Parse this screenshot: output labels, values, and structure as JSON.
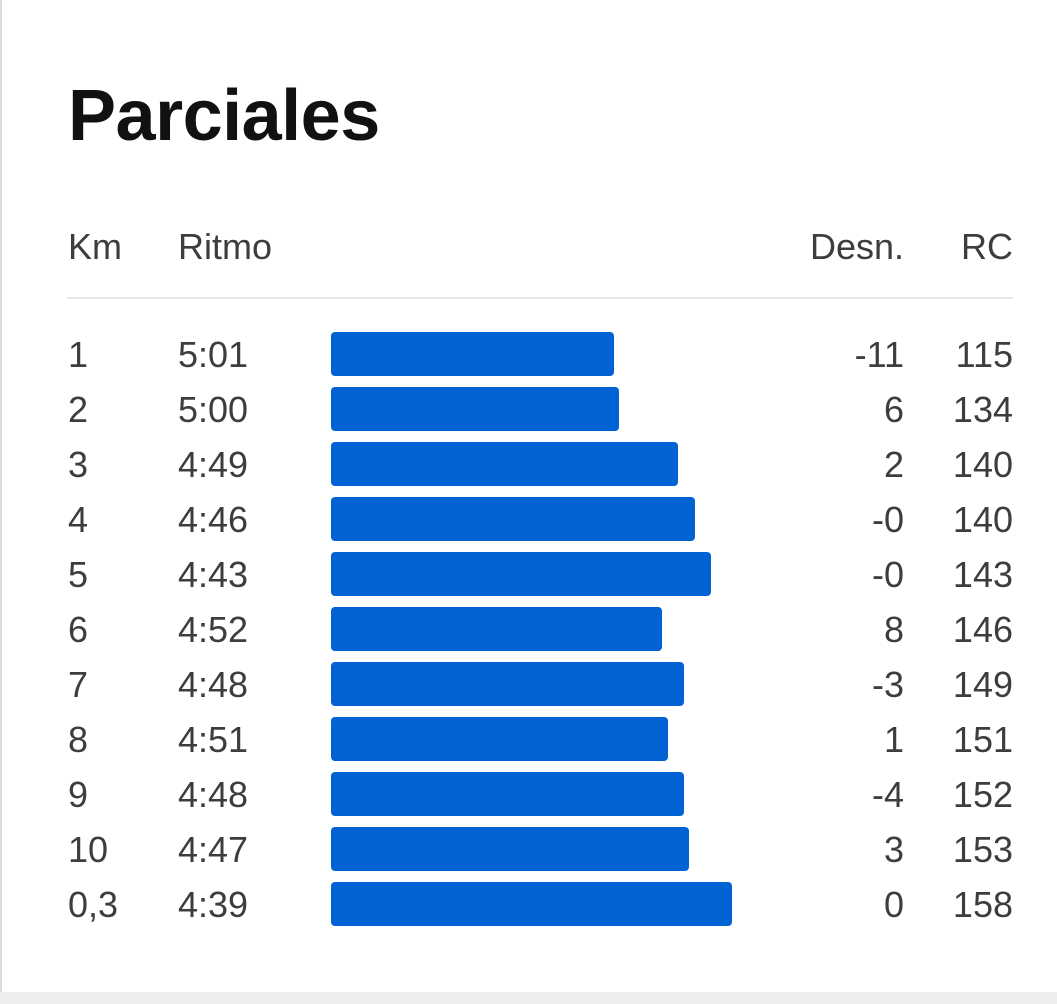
{
  "title": "Parciales",
  "accent_color": "#0062d3",
  "headers": {
    "km": "Km",
    "pace": "Ritmo",
    "elevation": "Desn.",
    "heart_rate": "RC"
  },
  "splits": [
    {
      "km": "1",
      "pace": "5:01",
      "pace_seconds": 301,
      "elevation": "-11",
      "heart_rate": "115"
    },
    {
      "km": "2",
      "pace": "5:00",
      "pace_seconds": 300,
      "elevation": "6",
      "heart_rate": "134"
    },
    {
      "km": "3",
      "pace": "4:49",
      "pace_seconds": 289,
      "elevation": "2",
      "heart_rate": "140"
    },
    {
      "km": "4",
      "pace": "4:46",
      "pace_seconds": 286,
      "elevation": "-0",
      "heart_rate": "140"
    },
    {
      "km": "5",
      "pace": "4:43",
      "pace_seconds": 283,
      "elevation": "-0",
      "heart_rate": "143"
    },
    {
      "km": "6",
      "pace": "4:52",
      "pace_seconds": 292,
      "elevation": "8",
      "heart_rate": "146"
    },
    {
      "km": "7",
      "pace": "4:48",
      "pace_seconds": 288,
      "elevation": "-3",
      "heart_rate": "149"
    },
    {
      "km": "8",
      "pace": "4:51",
      "pace_seconds": 291,
      "elevation": "1",
      "heart_rate": "151"
    },
    {
      "km": "9",
      "pace": "4:48",
      "pace_seconds": 288,
      "elevation": "-4",
      "heart_rate": "152"
    },
    {
      "km": "10",
      "pace": "4:47",
      "pace_seconds": 287,
      "elevation": "3",
      "heart_rate": "153"
    },
    {
      "km": "0,3",
      "pace": "4:39",
      "pace_seconds": 279,
      "elevation": "0",
      "heart_rate": "158"
    }
  ]
}
